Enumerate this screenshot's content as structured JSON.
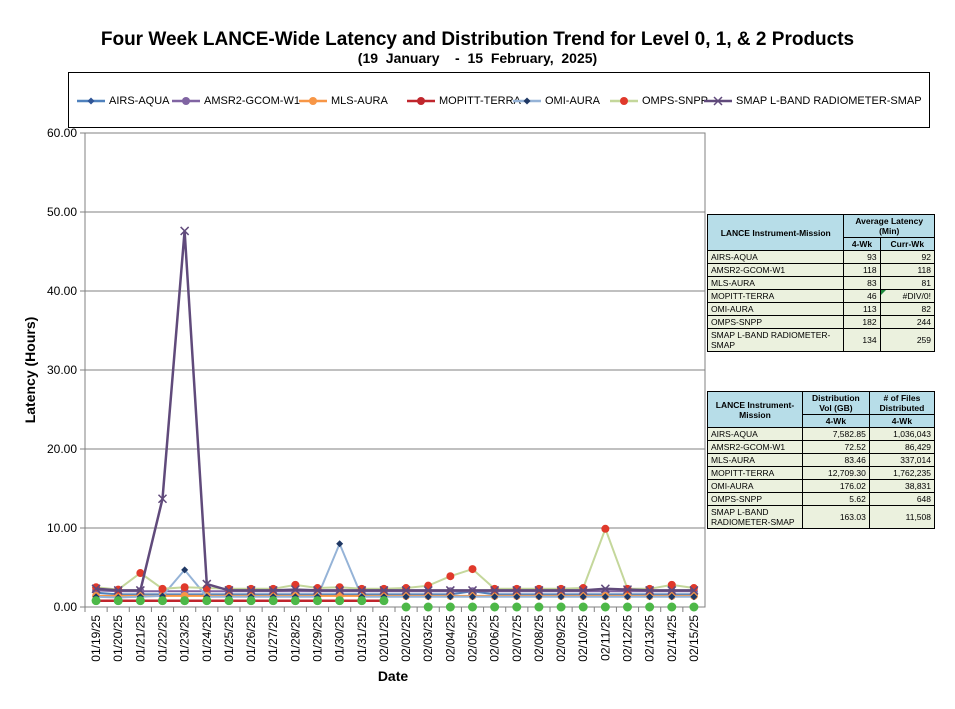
{
  "chart_data": {
    "type": "line",
    "title": "Four Week LANCE-Wide Latency and Distribution Trend for Level 0, 1, & 2 Products",
    "subtitle": "(19  January    -  15  February,  2025)",
    "xlabel": "Date",
    "ylabel": "Latency (Hours)",
    "ylim": [
      0,
      60
    ],
    "yticks": [
      "0.00",
      "10.00",
      "20.00",
      "30.00",
      "40.00",
      "50.00",
      "60.00"
    ],
    "grid": true,
    "legend_position": "top",
    "categories": [
      "01/19/25",
      "01/20/25",
      "01/21/25",
      "01/22/25",
      "01/23/25",
      "01/24/25",
      "01/25/25",
      "01/26/25",
      "01/27/25",
      "01/28/25",
      "01/29/25",
      "01/30/25",
      "01/31/25",
      "02/01/25",
      "02/02/25",
      "02/03/25",
      "02/04/25",
      "02/05/25",
      "02/06/25",
      "02/07/25",
      "02/08/25",
      "02/09/25",
      "02/10/25",
      "02/11/25",
      "02/12/25",
      "02/13/25",
      "02/14/25",
      "02/15/25"
    ],
    "series": [
      {
        "name": "AIRS-AQUA",
        "color": "#4f81bd",
        "marker": "diamond",
        "values": [
          1.8,
          1.6,
          1.6,
          1.6,
          1.6,
          1.6,
          1.6,
          1.6,
          1.6,
          1.6,
          1.6,
          1.6,
          1.6,
          1.6,
          1.6,
          1.6,
          1.6,
          2.0,
          1.6,
          1.6,
          1.6,
          1.6,
          1.6,
          1.6,
          1.6,
          1.6,
          1.6,
          1.6
        ]
      },
      {
        "name": "AMSR2-GCOM-W1",
        "color": "#8064a2",
        "marker": "circle",
        "values": [
          2.1,
          2.0,
          2.0,
          2.0,
          2.0,
          2.0,
          2.0,
          2.0,
          2.0,
          2.0,
          2.0,
          2.0,
          2.0,
          2.0,
          2.0,
          2.0,
          2.0,
          2.0,
          2.0,
          2.0,
          2.0,
          2.0,
          2.0,
          2.0,
          2.0,
          2.0,
          2.0,
          2.0
        ]
      },
      {
        "name": "MLS-AURA",
        "color": "#f79646",
        "marker": "circle",
        "values": [
          1.4,
          1.4,
          1.4,
          1.4,
          1.4,
          1.4,
          1.4,
          1.4,
          1.4,
          1.4,
          1.4,
          1.4,
          1.4,
          1.4,
          1.4,
          1.4,
          1.4,
          1.4,
          1.4,
          1.4,
          1.4,
          1.4,
          1.4,
          1.4,
          1.4,
          1.4,
          1.4,
          1.4
        ]
      },
      {
        "name": "MOPITT-TERRA",
        "color": "#c0262d",
        "marker": "circle",
        "values": [
          0.8,
          0.8,
          0.8,
          0.8,
          0.8,
          0.8,
          0.8,
          0.8,
          0.8,
          0.8,
          0.8,
          0.8,
          0.8,
          0.8,
          null,
          null,
          null,
          null,
          null,
          null,
          null,
          null,
          null,
          null,
          null,
          null,
          null,
          null
        ]
      },
      {
        "name": "OMI-AURA",
        "color": "#95b3d7",
        "marker": "diamond",
        "values": [
          1.3,
          1.2,
          1.3,
          1.4,
          4.7,
          1.3,
          1.3,
          1.3,
          1.3,
          1.3,
          1.3,
          8.0,
          1.3,
          1.3,
          1.3,
          1.3,
          1.3,
          1.3,
          1.3,
          1.3,
          1.3,
          1.3,
          1.3,
          1.3,
          1.3,
          1.3,
          1.3,
          1.3
        ]
      },
      {
        "name": "OMPS-SNPP",
        "color": "#c4d79b",
        "marker": "circle",
        "values": [
          2.5,
          2.2,
          4.3,
          2.3,
          2.5,
          2.4,
          2.3,
          2.3,
          2.3,
          2.8,
          2.4,
          2.5,
          2.3,
          2.3,
          2.4,
          2.7,
          3.9,
          4.8,
          2.3,
          2.3,
          2.3,
          2.3,
          2.4,
          9.9,
          2.3,
          2.3,
          2.8,
          2.4
        ]
      },
      {
        "name": "SMAP L-BAND RADIOMETER-SMAP",
        "color": "#604a7b",
        "marker": "x",
        "values": [
          2.3,
          2.1,
          2.1,
          13.7,
          47.6,
          2.9,
          2.1,
          2.1,
          2.1,
          2.2,
          2.1,
          2.1,
          2.1,
          2.1,
          2.1,
          2.1,
          2.1,
          2.1,
          2.1,
          2.1,
          2.1,
          2.1,
          2.1,
          2.3,
          2.2,
          2.1,
          2.1,
          2.1
        ]
      }
    ],
    "mopitt_zero_markers": [
      null,
      null,
      null,
      null,
      null,
      null,
      null,
      null,
      null,
      null,
      null,
      null,
      null,
      null,
      0,
      0,
      0,
      0,
      0,
      0,
      0,
      0,
      0,
      0,
      0,
      0,
      0,
      0
    ],
    "green_point_series": {
      "color": "#4db848",
      "values": [
        0.8,
        0.8,
        0.8,
        0.8,
        0.8,
        0.8,
        0.8,
        0.8,
        0.8,
        0.8,
        0.8,
        0.8,
        0.8,
        0.8,
        0,
        0,
        0,
        0,
        0,
        0,
        0,
        0,
        0,
        0,
        0,
        0,
        0,
        0
      ]
    }
  },
  "latency_table": {
    "h1": "LANCE Instrument-Mission",
    "h2": "Average Latency (Min)",
    "c1": "4-Wk",
    "c2": "Curr-Wk",
    "rows": [
      {
        "name": "AIRS-AQUA",
        "a": "93",
        "b": "92"
      },
      {
        "name": "AMSR2-GCOM-W1",
        "a": "118",
        "b": "118"
      },
      {
        "name": "MLS-AURA",
        "a": "83",
        "b": "81"
      },
      {
        "name": "MOPITT-TERRA",
        "a": "46",
        "b": "#DIV/0!"
      },
      {
        "name": "OMI-AURA",
        "a": "113",
        "b": "82"
      },
      {
        "name": "OMPS-SNPP",
        "a": "182",
        "b": "244"
      },
      {
        "name": "SMAP L-BAND RADIOMETER-SMAP",
        "a": "134",
        "b": "259"
      }
    ]
  },
  "dist_table": {
    "h1": "LANCE Instrument-Mission",
    "h2": "Distribution Vol (GB)",
    "h3": "# of Files Distributed",
    "c1": "4-Wk",
    "c2": "4-Wk",
    "rows": [
      {
        "name": "AIRS-AQUA",
        "a": "7,582.85",
        "b": "1,036,043"
      },
      {
        "name": "AMSR2-GCOM-W1",
        "a": "72.52",
        "b": "86,429"
      },
      {
        "name": "MLS-AURA",
        "a": "83.46",
        "b": "337,014"
      },
      {
        "name": "MOPITT-TERRA",
        "a": "12,709.30",
        "b": "1,762,235"
      },
      {
        "name": "OMI-AURA",
        "a": "176.02",
        "b": "38,831"
      },
      {
        "name": "OMPS-SNPP",
        "a": "5.62",
        "b": "648"
      },
      {
        "name": "SMAP L-BAND RADIOMETER-SMAP",
        "a": "163.03",
        "b": "11,508"
      }
    ]
  }
}
